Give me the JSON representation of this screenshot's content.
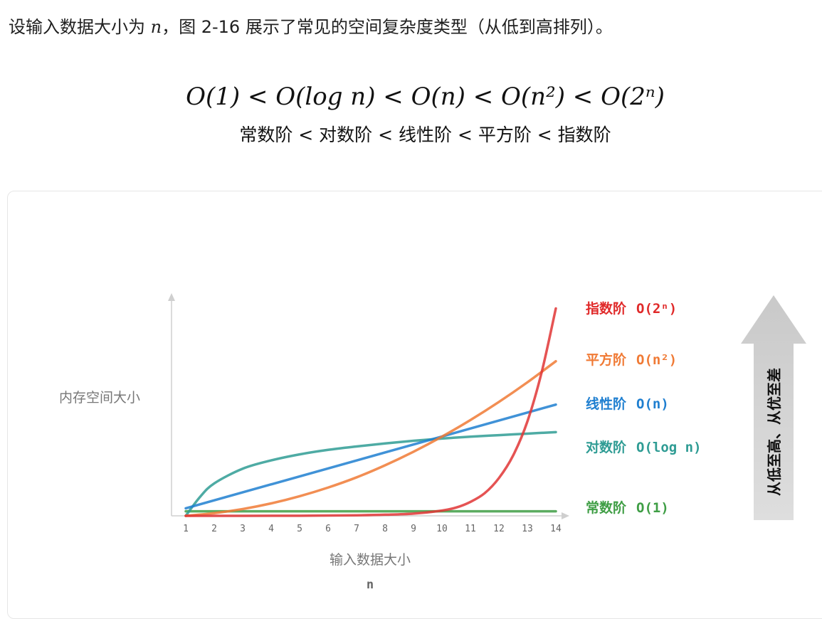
{
  "intro": {
    "before": "设输入数据大小为 ",
    "variable": "n",
    "after": "，图 2-16 展示了常见的空间复杂度类型（从低到高排列）。"
  },
  "formula": {
    "line1": [
      "O(1)",
      "<",
      "O(log n)",
      "<",
      "O(n)",
      "<",
      "O(n²)",
      "<",
      "O(2ⁿ)"
    ],
    "line2": "常数阶 < 对数阶 < 线性阶 < 平方阶 < 指数阶"
  },
  "chart_data": {
    "type": "line",
    "ylabel": "内存空间大小",
    "xlabel": "输入数据大小",
    "xvar": "n",
    "x_ticks": [
      "1",
      "2",
      "3",
      "4",
      "5",
      "6",
      "7",
      "8",
      "9",
      "10",
      "11",
      "12",
      "13",
      "14"
    ],
    "series": [
      {
        "name": "指数阶",
        "notation": "O(2ⁿ)",
        "color": "#e03535",
        "x": [
          1,
          3,
          5,
          7,
          8,
          9,
          10,
          10.5,
          11,
          11.5,
          12,
          12.5,
          13,
          13.5,
          14
        ],
        "y": [
          0.0,
          0.0,
          0.3,
          1.5,
          3,
          6,
          14,
          22,
          37,
          60,
          100,
          160,
          250,
          380,
          550
        ]
      },
      {
        "name": "平方阶",
        "notation": "O(n²)",
        "color": "#f07a35",
        "x": [
          1,
          2,
          3,
          4,
          5,
          6,
          7,
          8,
          9,
          10,
          11,
          12,
          13,
          14
        ],
        "y": [
          0,
          7,
          18,
          33,
          52,
          75,
          102,
          134,
          170,
          210,
          254,
          302,
          354,
          410
        ]
      },
      {
        "name": "线性阶",
        "notation": "O(n)",
        "color": "#1f7fd0",
        "x": [
          1,
          14
        ],
        "y": [
          20,
          295
        ]
      },
      {
        "name": "对数阶",
        "notation": "O(log n)",
        "color": "#2f9c94",
        "x": [
          1,
          1.5,
          2,
          3,
          4,
          5,
          6,
          7,
          8,
          9,
          10,
          11,
          12,
          13,
          14
        ],
        "y": [
          0,
          50,
          86,
          125,
          147,
          163,
          175,
          184,
          192,
          199,
          205,
          210,
          214,
          218,
          222
        ]
      },
      {
        "name": "常数阶",
        "notation": "O(1)",
        "color": "#3f9e45",
        "x": [
          1,
          14
        ],
        "y": [
          12,
          12
        ]
      }
    ]
  },
  "legend": [
    {
      "label": "指数阶",
      "code": "O(2ⁿ)",
      "color": "#e02a2a"
    },
    {
      "label": "平方阶",
      "code": "O(n²)",
      "color": "#f07a35"
    },
    {
      "label": "线性阶",
      "code": "O(n)",
      "color": "#1f7fd0"
    },
    {
      "label": "对数阶",
      "code": "O(log n)",
      "color": "#2f9c94"
    },
    {
      "label": "常数阶",
      "code": "O(1)",
      "color": "#3f9e45"
    }
  ],
  "arrow_label": "从低至高、从优至差"
}
